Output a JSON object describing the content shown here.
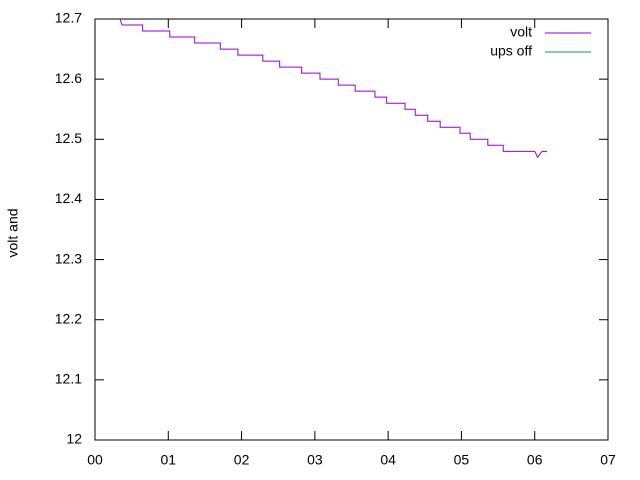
{
  "chart_data": {
    "type": "line",
    "ylabel": "volt and",
    "xlim": [
      0,
      7
    ],
    "ylim": [
      12,
      12.7
    ],
    "xticks": [
      {
        "value": 0,
        "label": "00"
      },
      {
        "value": 1,
        "label": "01"
      },
      {
        "value": 2,
        "label": "02"
      },
      {
        "value": 3,
        "label": "03"
      },
      {
        "value": 4,
        "label": "04"
      },
      {
        "value": 5,
        "label": "05"
      },
      {
        "value": 6,
        "label": "06"
      },
      {
        "value": 7,
        "label": "07"
      }
    ],
    "yticks": [
      12,
      12.1,
      12.2,
      12.3,
      12.4,
      12.5,
      12.6,
      12.7
    ],
    "legend": "top-right",
    "series": [
      {
        "name": "volt",
        "color": "#9400d3",
        "x": [
          0.34,
          0.37,
          0.65,
          0.65,
          1.02,
          1.02,
          1.36,
          1.36,
          1.71,
          1.71,
          1.95,
          1.95,
          2.29,
          2.29,
          2.52,
          2.52,
          2.82,
          2.82,
          3.07,
          3.07,
          3.32,
          3.32,
          3.55,
          3.55,
          3.82,
          3.82,
          3.98,
          3.98,
          4.23,
          4.23,
          4.37,
          4.37,
          4.54,
          4.54,
          4.71,
          4.71,
          4.98,
          4.98,
          5.12,
          5.12,
          5.36,
          5.36,
          5.57,
          5.57,
          6.0,
          6.04,
          6.1,
          6.17
        ],
        "values": [
          12.7,
          12.69,
          12.69,
          12.68,
          12.68,
          12.67,
          12.67,
          12.66,
          12.66,
          12.65,
          12.65,
          12.64,
          12.64,
          12.63,
          12.63,
          12.62,
          12.62,
          12.61,
          12.61,
          12.6,
          12.6,
          12.59,
          12.59,
          12.58,
          12.58,
          12.57,
          12.57,
          12.56,
          12.56,
          12.55,
          12.55,
          12.54,
          12.54,
          12.53,
          12.53,
          12.52,
          12.52,
          12.51,
          12.51,
          12.5,
          12.5,
          12.49,
          12.49,
          12.48,
          12.48,
          12.47,
          12.48,
          12.48
        ]
      },
      {
        "name": "ups off",
        "color": "#009e73",
        "x": [],
        "values": []
      }
    ]
  }
}
